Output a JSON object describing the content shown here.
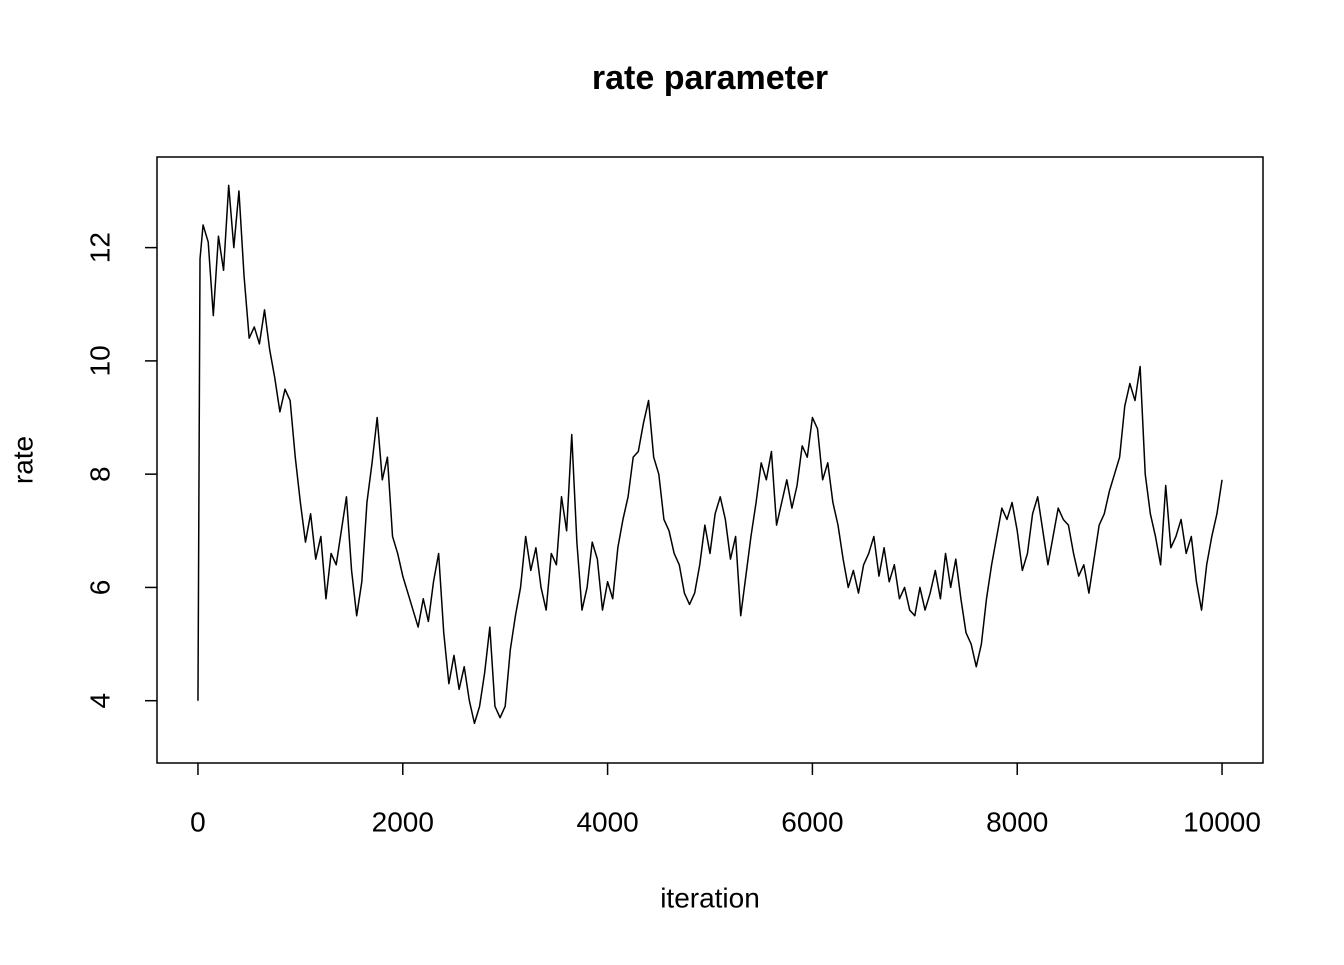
{
  "chart_data": {
    "type": "line",
    "title": "rate parameter",
    "x_label": "iteration",
    "y_label": "rate",
    "xlim": [
      -400,
      10400
    ],
    "ylim": [
      2.9,
      13.6
    ],
    "xticks": [
      0,
      2000,
      4000,
      6000,
      8000,
      10000
    ],
    "yticks": [
      4,
      6,
      8,
      10,
      12
    ],
    "grid": false,
    "x": [
      0,
      20,
      50,
      100,
      150,
      200,
      250,
      300,
      350,
      400,
      450,
      500,
      550,
      600,
      650,
      700,
      750,
      800,
      850,
      900,
      950,
      1000,
      1050,
      1100,
      1150,
      1200,
      1250,
      1300,
      1350,
      1400,
      1450,
      1500,
      1550,
      1600,
      1650,
      1700,
      1750,
      1800,
      1850,
      1900,
      1950,
      2000,
      2050,
      2100,
      2150,
      2200,
      2250,
      2300,
      2350,
      2400,
      2450,
      2500,
      2550,
      2600,
      2650,
      2700,
      2750,
      2800,
      2850,
      2900,
      2950,
      3000,
      3050,
      3100,
      3150,
      3200,
      3250,
      3300,
      3350,
      3400,
      3450,
      3500,
      3550,
      3600,
      3650,
      3700,
      3750,
      3800,
      3850,
      3900,
      3950,
      4000,
      4050,
      4100,
      4150,
      4200,
      4250,
      4300,
      4350,
      4400,
      4450,
      4500,
      4550,
      4600,
      4650,
      4700,
      4750,
      4800,
      4850,
      4900,
      4950,
      5000,
      5050,
      5100,
      5150,
      5200,
      5250,
      5300,
      5350,
      5400,
      5450,
      5500,
      5550,
      5600,
      5650,
      5700,
      5750,
      5800,
      5850,
      5900,
      5950,
      6000,
      6050,
      6100,
      6150,
      6200,
      6250,
      6300,
      6350,
      6400,
      6450,
      6500,
      6550,
      6600,
      6650,
      6700,
      6750,
      6800,
      6850,
      6900,
      6950,
      7000,
      7050,
      7100,
      7150,
      7200,
      7250,
      7300,
      7350,
      7400,
      7450,
      7500,
      7550,
      7600,
      7650,
      7700,
      7750,
      7800,
      7850,
      7900,
      7950,
      8000,
      8050,
      8100,
      8150,
      8200,
      8250,
      8300,
      8350,
      8400,
      8450,
      8500,
      8550,
      8600,
      8650,
      8700,
      8750,
      8800,
      8850,
      8900,
      8950,
      9000,
      9050,
      9100,
      9150,
      9200,
      9250,
      9300,
      9350,
      9400,
      9450,
      9500,
      9550,
      9600,
      9650,
      9700,
      9750,
      9800,
      9850,
      9900,
      9950,
      10000
    ],
    "series": [
      {
        "name": "rate",
        "color": "#000000",
        "values": [
          4.0,
          11.8,
          12.4,
          12.1,
          10.8,
          12.2,
          11.6,
          13.1,
          12.0,
          13.0,
          11.5,
          10.4,
          10.6,
          10.3,
          10.9,
          10.2,
          9.7,
          9.1,
          9.5,
          9.3,
          8.3,
          7.5,
          6.8,
          7.3,
          6.5,
          6.9,
          5.8,
          6.6,
          6.4,
          7.0,
          7.6,
          6.3,
          5.5,
          6.1,
          7.5,
          8.2,
          9.0,
          7.9,
          8.3,
          6.9,
          6.6,
          6.2,
          5.9,
          5.6,
          5.3,
          5.8,
          5.4,
          6.1,
          6.6,
          5.2,
          4.3,
          4.8,
          4.2,
          4.6,
          4.0,
          3.6,
          3.9,
          4.5,
          5.3,
          3.9,
          3.7,
          3.9,
          4.9,
          5.5,
          6.0,
          6.9,
          6.3,
          6.7,
          6.0,
          5.6,
          6.6,
          6.4,
          7.6,
          7.0,
          8.7,
          6.8,
          5.6,
          6.0,
          6.8,
          6.5,
          5.6,
          6.1,
          5.8,
          6.7,
          7.2,
          7.6,
          8.3,
          8.4,
          8.9,
          9.3,
          8.3,
          8.0,
          7.2,
          7.0,
          6.6,
          6.4,
          5.9,
          5.7,
          5.9,
          6.4,
          7.1,
          6.6,
          7.3,
          7.6,
          7.2,
          6.5,
          6.9,
          5.5,
          6.2,
          6.9,
          7.5,
          8.2,
          7.9,
          8.4,
          7.1,
          7.5,
          7.9,
          7.4,
          7.8,
          8.5,
          8.3,
          9.0,
          8.8,
          7.9,
          8.2,
          7.5,
          7.1,
          6.5,
          6.0,
          6.3,
          5.9,
          6.4,
          6.6,
          6.9,
          6.2,
          6.7,
          6.1,
          6.4,
          5.8,
          6.0,
          5.6,
          5.5,
          6.0,
          5.6,
          5.9,
          6.3,
          5.8,
          6.6,
          6.0,
          6.5,
          5.8,
          5.2,
          5.0,
          4.6,
          5.0,
          5.8,
          6.4,
          6.9,
          7.4,
          7.2,
          7.5,
          7.0,
          6.3,
          6.6,
          7.3,
          7.6,
          7.0,
          6.4,
          6.9,
          7.4,
          7.2,
          7.1,
          6.6,
          6.2,
          6.4,
          5.9,
          6.5,
          7.1,
          7.3,
          7.7,
          8.0,
          8.3,
          9.2,
          9.6,
          9.3,
          9.9,
          8.0,
          7.3,
          6.9,
          6.4,
          7.8,
          6.7,
          6.9,
          7.2,
          6.6,
          6.9,
          6.1,
          5.6,
          6.4,
          6.9,
          7.3,
          7.9
        ]
      }
    ]
  }
}
